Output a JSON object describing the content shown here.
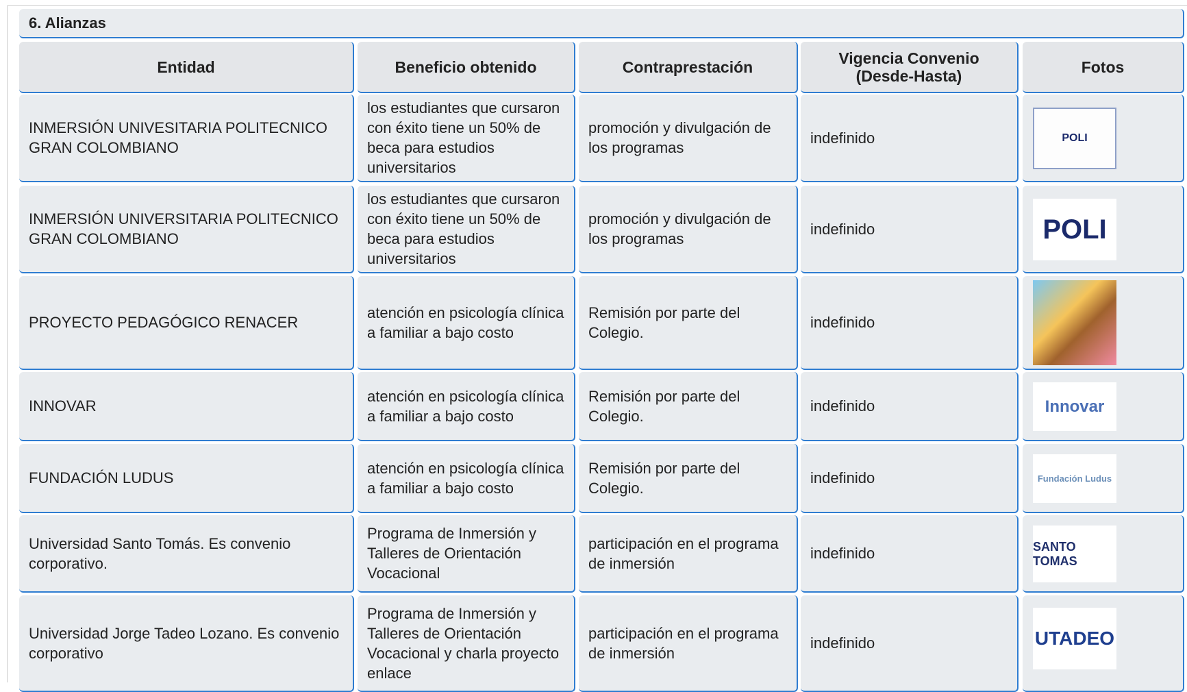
{
  "section": {
    "title": "6. Alianzas"
  },
  "table": {
    "headers": [
      "Entidad",
      "Beneficio obtenido",
      "Contraprestación",
      "Vigencia Convenio (Desde-Hasta)",
      "Fotos"
    ],
    "rows": [
      [
        "INMERSIÓN UNIVESITARIA POLITECNICO GRAN COLOMBIANO",
        "los estudiantes que cursaron con éxito tiene un 50% de beca para estudios universitarios",
        "promoción y divulgación de los programas",
        "indefinido",
        "POLI"
      ],
      [
        "INMERSIÓN UNIVERSITARIA POLITECNICO GRAN COLOMBIANO",
        "los estudiantes que cursaron con éxito tiene un 50% de beca para estudios universitarios",
        "promoción y divulgación de los programas",
        "indefinido",
        "POLI"
      ],
      [
        "PROYECTO PEDAGÓGICO RENACER",
        "atención en psicología clínica a familiar a bajo costo",
        "Remisión por parte del Colegio.",
        "indefinido",
        null
      ],
      [
        "INNOVAR",
        "atención en psicología clínica a familiar a bajo costo",
        "Remisión por parte del Colegio.",
        "indefinido",
        "Innovar"
      ],
      [
        "FUNDACIÓN LUDUS",
        "atención en psicología clínica a familiar a bajo costo",
        "Remisión por parte del Colegio.",
        "indefinido",
        "Fundación Ludus"
      ],
      [
        "Universidad Santo Tomás. Es convenio corporativo.",
        "Programa de Inmersión y Talleres de Orientación Vocacional",
        "participación en el programa de inmersión",
        "indefinido",
        "SANTO TOMAS"
      ],
      [
        "Universidad Jorge Tadeo Lozano. Es convenio corporativo",
        "Programa de Inmersión y Talleres de Orientación Vocacional y charla proyecto enlace",
        "participación en el programa de inmersión",
        "indefinido",
        "UTADEO"
      ]
    ]
  }
}
